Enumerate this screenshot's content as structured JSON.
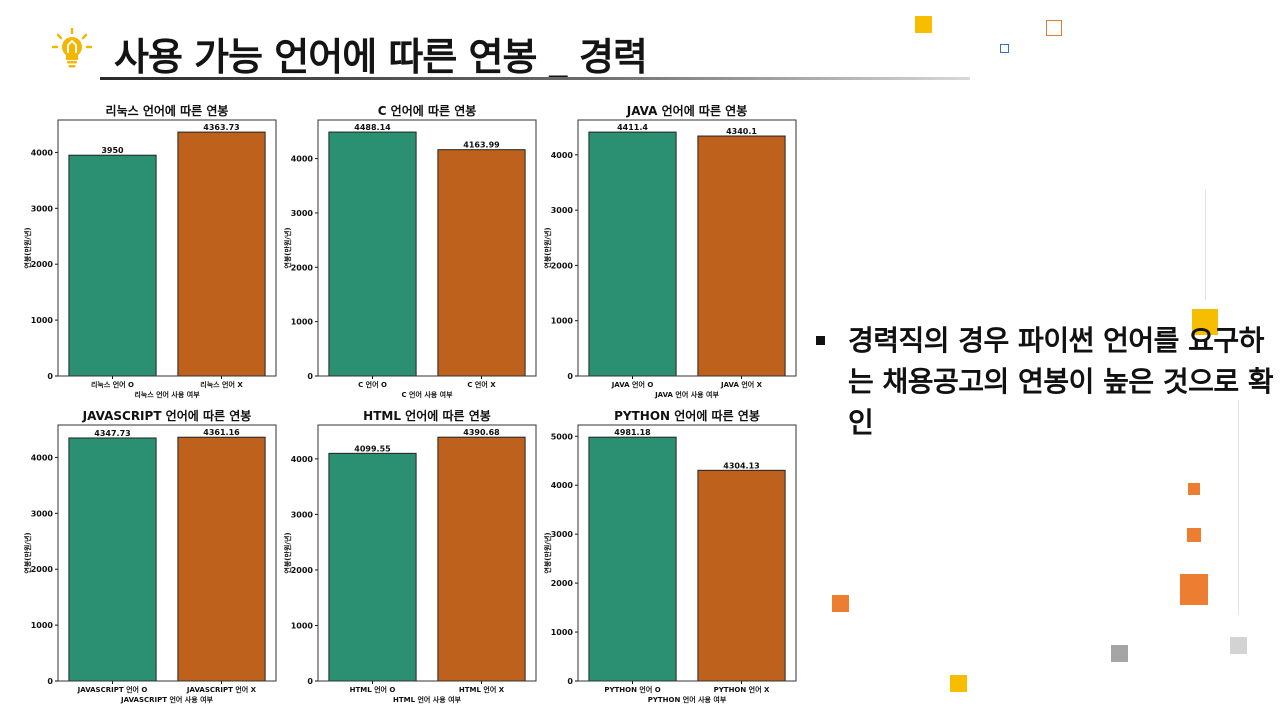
{
  "title": "사용 가능 언어에 따른 연봉 _ 경력",
  "bullet_text": "경력직의 경우 파이썬 언어를 요구하는 채용공고의 연봉이 높은 것으로 확인",
  "colors": {
    "used": "#2b8f71",
    "not_used": "#bd611d"
  },
  "chart_data": [
    {
      "type": "bar",
      "title": "리눅스 언어에 따른 연봉",
      "categories": [
        "리눅스 언어 O",
        "리눅스 언어 X"
      ],
      "values": [
        3950,
        4363.73
      ],
      "value_labels": [
        "3950",
        "4363.73"
      ],
      "xlabel": "리눅스 언어 사용 여부",
      "ylabel": "연봉(만원/년)",
      "ylim": [
        0,
        4580
      ],
      "yticks": [
        0,
        1000,
        2000,
        3000,
        4000
      ]
    },
    {
      "type": "bar",
      "title": "C 언어에 따른 연봉",
      "categories": [
        "C 언어 O",
        "C 언어 X"
      ],
      "values": [
        4488.14,
        4163.99
      ],
      "value_labels": [
        "4488.14",
        "4163.99"
      ],
      "xlabel": "C 언어 사용 여부",
      "ylabel": "연봉(만원/년)",
      "ylim": [
        0,
        4710
      ],
      "yticks": [
        0,
        1000,
        2000,
        3000,
        4000
      ]
    },
    {
      "type": "bar",
      "title": "JAVA 언어에 따른 연봉",
      "categories": [
        "JAVA 언어 O",
        "JAVA 언어 X"
      ],
      "values": [
        4411.4,
        4340.1
      ],
      "value_labels": [
        "4411.4",
        "4340.1"
      ],
      "xlabel": "JAVA 언어 사용 여부",
      "ylabel": "연봉(만원/년)",
      "ylim": [
        0,
        4630
      ],
      "yticks": [
        0,
        1000,
        2000,
        3000,
        4000
      ]
    },
    {
      "type": "bar",
      "title": "JAVASCRIPT 언어에 따른 연봉",
      "categories": [
        "JAVASCRIPT 언어 O",
        "JAVASCRIPT 언어 X"
      ],
      "values": [
        4347.73,
        4361.16
      ],
      "value_labels": [
        "4347.73",
        "4361.16"
      ],
      "xlabel": "JAVASCRIPT 언어 사용 여부",
      "ylabel": "연봉(만원/년)",
      "ylim": [
        0,
        4580
      ],
      "yticks": [
        0,
        1000,
        2000,
        3000,
        4000
      ]
    },
    {
      "type": "bar",
      "title": "HTML 언어에 따른 연봉",
      "categories": [
        "HTML 언어 O",
        "HTML 언어 X"
      ],
      "values": [
        4099.55,
        4390.68
      ],
      "value_labels": [
        "4099.55",
        "4390.68"
      ],
      "xlabel": "HTML 언어 사용 여부",
      "ylabel": "연봉(만원/년)",
      "ylim": [
        0,
        4610
      ],
      "yticks": [
        0,
        1000,
        2000,
        3000,
        4000
      ]
    },
    {
      "type": "bar",
      "title": "PYTHON 언어에 따른 연봉",
      "categories": [
        "PYTHON 언어 O",
        "PYTHON 언어 X"
      ],
      "values": [
        4981.18,
        4304.13
      ],
      "value_labels": [
        "4981.18",
        "4304.13"
      ],
      "xlabel": "PYTHON 언어 사용 여부",
      "ylabel": "연봉(만원/년)",
      "ylim": [
        0,
        5230
      ],
      "yticks": [
        0,
        1000,
        2000,
        3000,
        4000,
        5000
      ]
    }
  ]
}
